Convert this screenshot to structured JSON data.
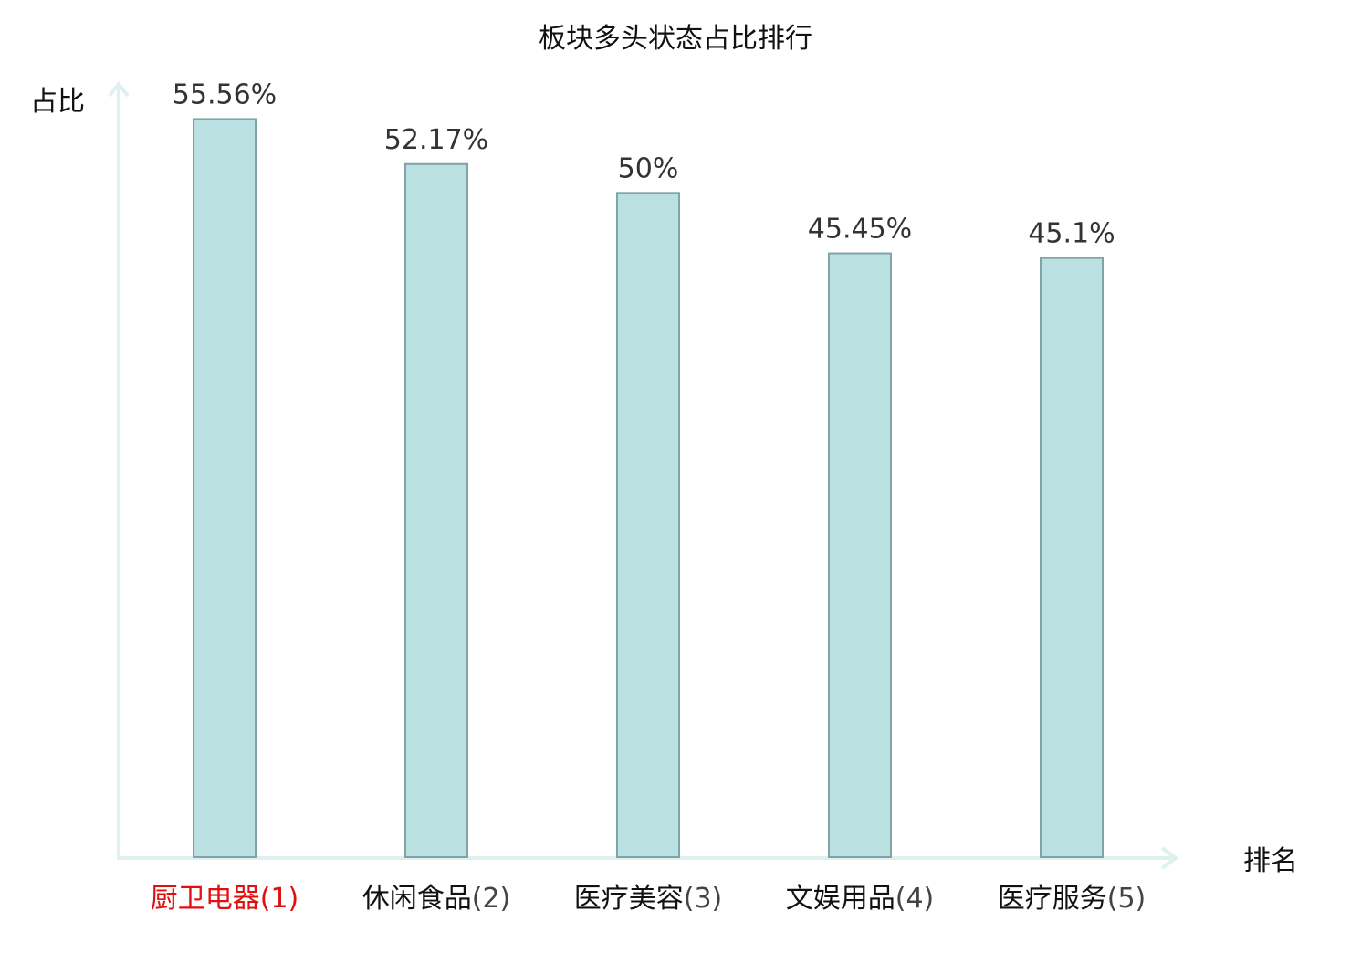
{
  "chart_data": {
    "type": "bar",
    "title": "板块多头状态占比排行",
    "ylabel": "占比",
    "xlabel": "排名",
    "categories": [
      "厨卫电器",
      "休闲食品",
      "医疗美容",
      "文娱用品",
      "医疗服务"
    ],
    "ranks": [
      "(1)",
      "(2)",
      "(3)",
      "(4)",
      "(5)"
    ],
    "values": [
      55.56,
      52.17,
      50,
      45.45,
      45.1
    ],
    "value_labels": [
      "55.56%",
      "52.17%",
      "50%",
      "45.45%",
      "45.1%"
    ],
    "highlight_index": 0,
    "ylim": [
      0,
      58.2
    ],
    "grid": false,
    "legend": "none"
  },
  "colors": {
    "bar_fill": "#bbe0e2",
    "bar_stroke": "#7fa3a6",
    "axis": "#dff1ef",
    "title_text": "#111111",
    "value_text": "#333333",
    "category_text": "#111111",
    "rank_text": "#444444",
    "highlight_text": "#e01010"
  }
}
